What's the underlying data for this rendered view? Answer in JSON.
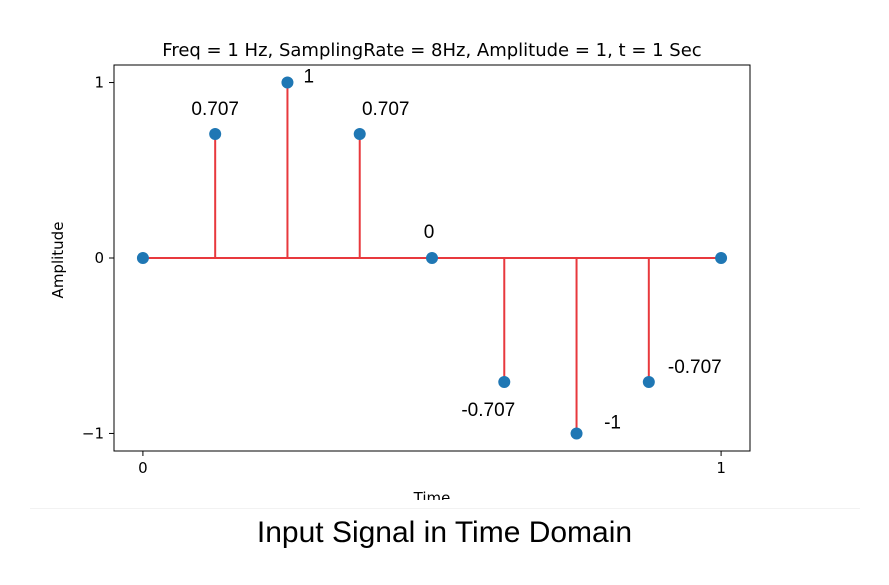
{
  "chart_data": {
    "type": "stem",
    "title": "Freq = 1 Hz, SamplingRate = 8Hz, Amplitude = 1, t = 1 Sec",
    "xlabel": "Time",
    "ylabel": "Amplitude",
    "xlim": [
      -0.05,
      1.05
    ],
    "ylim": [
      -1.1,
      1.1
    ],
    "xticks": [
      0,
      1
    ],
    "xtick_labels": [
      "0",
      "1"
    ],
    "yticks": [
      -1,
      0,
      1
    ],
    "ytick_labels": [
      "−1",
      "0",
      "1"
    ],
    "grid": false,
    "legend": false,
    "x": [
      0,
      0.125,
      0.25,
      0.375,
      0.5,
      0.625,
      0.75,
      0.875,
      1
    ],
    "y": [
      0,
      0.707,
      1,
      0.707,
      0,
      -0.707,
      -1,
      -0.707,
      0
    ],
    "annotations": [
      {
        "text": "0.707",
        "x": 0.125,
        "y": 0.707
      },
      {
        "text": "1",
        "x": 0.25,
        "y": 1
      },
      {
        "text": "0.707",
        "x": 0.375,
        "y": 0.707
      },
      {
        "text": "0",
        "x": 0.5,
        "y": 0
      },
      {
        "text": "-0.707",
        "x": 0.625,
        "y": -0.707
      },
      {
        "text": "-1",
        "x": 0.75,
        "y": -1
      },
      {
        "text": "-0.707",
        "x": 0.875,
        "y": -0.707
      }
    ],
    "colors": {
      "stem": "#e8393d",
      "marker": "#1f77b4",
      "baseline": "#e8393d"
    }
  },
  "caption": "Input Signal in Time Domain"
}
